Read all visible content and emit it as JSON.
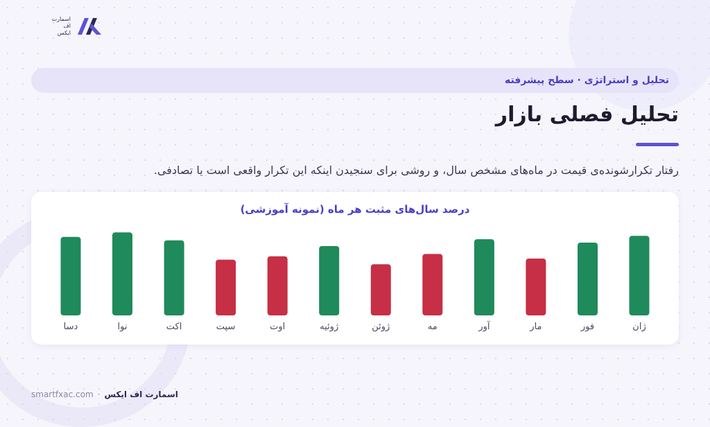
{
  "brand": {
    "logo_lines": [
      "اسمارت",
      "اف",
      "ایکس"
    ],
    "footer_brand": "اسمارت اف ایکس",
    "footer_site": "smartfxac.com",
    "footer_separator": "·"
  },
  "header": {
    "banner": "تحلیل و استراتژی · سطح پیشرفته",
    "title": "تحلیل فصلی بازار",
    "subtitle": "رفتار تکرارشونده‌ی قیمت در ماه‌های مشخص سال، و روشی برای سنجیدن اینکه این تکرار واقعی است یا تصادفی."
  },
  "colors": {
    "positive": "#1f8a5b",
    "negative": "#c62f45",
    "accent": "#5c52d6"
  },
  "chart_data": {
    "type": "bar",
    "title": "درصد سال‌های مثبت هر ماه (نمونه آموزشی)",
    "categories": [
      "ژان",
      "فور",
      "مار",
      "آور",
      "مه",
      "ژوئن",
      "ژوئیه",
      "اوت",
      "سپت",
      "اکت",
      "نوا",
      "دسا"
    ],
    "values": [
      70,
      64,
      50,
      67,
      54,
      45,
      61,
      52,
      49,
      66,
      73,
      69
    ],
    "status": [
      "positive",
      "positive",
      "negative",
      "positive",
      "negative",
      "negative",
      "positive",
      "negative",
      "negative",
      "positive",
      "positive",
      "positive"
    ],
    "ylim": [
      0,
      100
    ],
    "grid": false,
    "legend": "none"
  }
}
